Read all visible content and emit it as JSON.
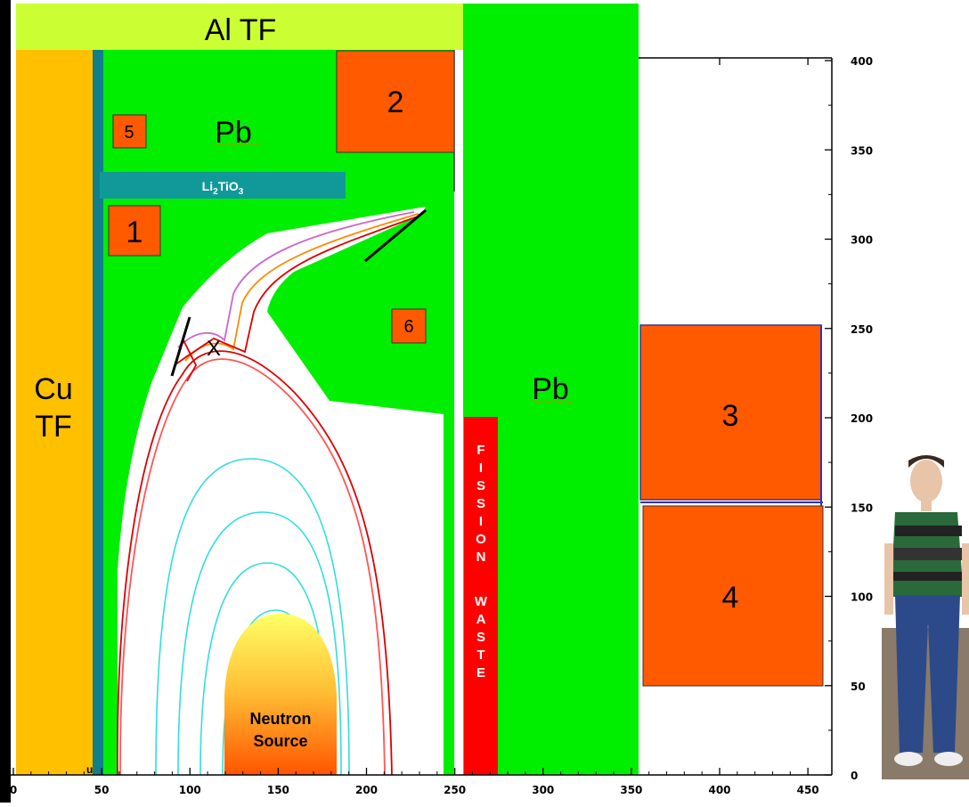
{
  "labels": {
    "al_tf": "Al TF",
    "cu_tf_line1": "Cu",
    "cu_tf_line2": "TF",
    "pb_upper": "Pb",
    "pb_right": "Pb",
    "li2tio3_base": "Li",
    "li2tio3_sub1": "2",
    "li2tio3_mid": "TiO",
    "li2tio3_sub2": "3",
    "neutron_line1": "Neutron",
    "neutron_line2": "Source",
    "fission_waste": [
      "F",
      "I",
      "S",
      "S",
      "I",
      "O",
      "N",
      "",
      "W",
      "A",
      "S",
      "T",
      "E"
    ],
    "x_point": "X",
    "u_mark": "u"
  },
  "coils": [
    {
      "id": "1",
      "label": "1"
    },
    {
      "id": "2",
      "label": "2"
    },
    {
      "id": "3",
      "label": "3"
    },
    {
      "id": "4",
      "label": "4"
    },
    {
      "id": "5",
      "label": "5"
    },
    {
      "id": "6",
      "label": "6"
    }
  ],
  "x_axis": {
    "ticks": [
      "0",
      "50",
      "100",
      "150",
      "200",
      "250",
      "300",
      "350",
      "400",
      "450"
    ]
  },
  "y_axis": {
    "ticks": [
      "0",
      "50",
      "100",
      "150",
      "200",
      "250",
      "300",
      "350",
      "400"
    ]
  },
  "colors": {
    "al_tf": "#ccff33",
    "cu_tf": "#ffc000",
    "pb": "#00ee00",
    "coil": "#ff5a00",
    "li2tio3": "#119999",
    "fission_waste": "#ff0000",
    "neutron_top": "#ffff55",
    "neutron_bottom": "#ff6600"
  }
}
